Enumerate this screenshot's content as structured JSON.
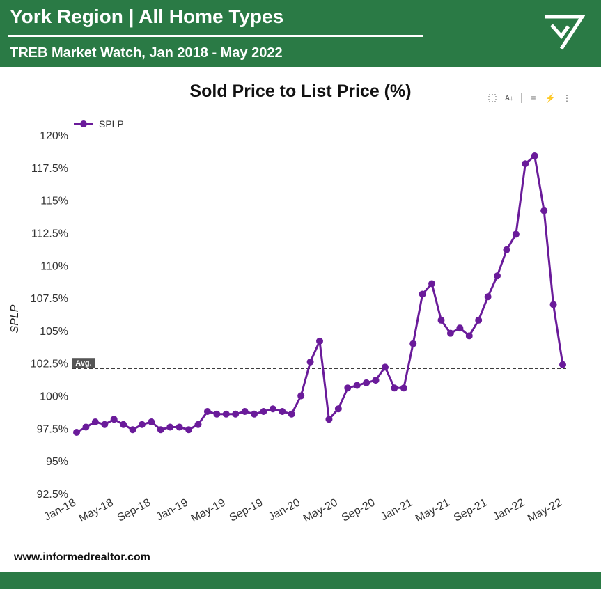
{
  "header": {
    "title": "York Region | All Home Types",
    "subtitle": "TREB Market Watch, Jan 2018 - May 2022",
    "logo_icon": "checkmark-triangle-logo"
  },
  "colors": {
    "brand": "#2a7a45",
    "series": "#6a1b9a",
    "avg_line": "#222222"
  },
  "toolbar": {
    "icons": [
      "select-region-icon",
      "sort-az-icon",
      "filter-icon",
      "quick-insights-icon",
      "more-options-icon"
    ]
  },
  "footer": {
    "url": "www.informedrealtor.com"
  },
  "chart_data": {
    "type": "line",
    "title": "Sold Price to List Price (%)",
    "xlabel": "",
    "ylabel": "SPLP",
    "ylim": [
      92.5,
      120
    ],
    "yticks": [
      "92.5%",
      "95%",
      "97.5%",
      "100%",
      "102.5%",
      "105%",
      "107.5%",
      "110%",
      "112.5%",
      "115%",
      "117.5%",
      "120%"
    ],
    "ytick_values": [
      92.5,
      95,
      97.5,
      100,
      102.5,
      105,
      107.5,
      110,
      112.5,
      115,
      117.5,
      120
    ],
    "xtick_labels": [
      "Jan-18",
      "May-18",
      "Sep-18",
      "Jan-19",
      "May-19",
      "Sep-19",
      "Jan-20",
      "May-20",
      "Sep-20",
      "Jan-21",
      "May-21",
      "Sep-21",
      "Jan-22",
      "May-22"
    ],
    "x": [
      "Jan-18",
      "Feb-18",
      "Mar-18",
      "Apr-18",
      "May-18",
      "Jun-18",
      "Jul-18",
      "Aug-18",
      "Sep-18",
      "Oct-18",
      "Nov-18",
      "Dec-18",
      "Jan-19",
      "Feb-19",
      "Mar-19",
      "Apr-19",
      "May-19",
      "Jun-19",
      "Jul-19",
      "Aug-19",
      "Sep-19",
      "Oct-19",
      "Nov-19",
      "Dec-19",
      "Jan-20",
      "Feb-20",
      "Mar-20",
      "Apr-20",
      "May-20",
      "Jun-20",
      "Jul-20",
      "Aug-20",
      "Sep-20",
      "Oct-20",
      "Nov-20",
      "Dec-20",
      "Jan-21",
      "Feb-21",
      "Mar-21",
      "Apr-21",
      "May-21",
      "Jun-21",
      "Jul-21",
      "Aug-21",
      "Sep-21",
      "Oct-21",
      "Nov-21",
      "Dec-21",
      "Jan-22",
      "Feb-22",
      "Mar-22",
      "Apr-22",
      "May-22"
    ],
    "series": [
      {
        "name": "SPLP",
        "values": [
          97.2,
          97.6,
          98.0,
          97.8,
          98.2,
          97.8,
          97.4,
          97.8,
          98.0,
          97.4,
          97.6,
          97.6,
          97.4,
          97.8,
          98.8,
          98.6,
          98.6,
          98.6,
          98.8,
          98.6,
          98.8,
          99.0,
          98.8,
          98.6,
          100.0,
          102.6,
          104.2,
          98.2,
          99.0,
          100.6,
          100.8,
          101.0,
          101.2,
          102.2,
          100.6,
          100.6,
          104.0,
          107.8,
          108.6,
          105.8,
          104.8,
          105.2,
          104.6,
          105.8,
          107.6,
          109.2,
          111.2,
          112.4,
          117.8,
          118.4,
          114.2,
          107.0,
          102.4
        ]
      }
    ],
    "average": 102.1,
    "average_label": "Avg.",
    "legend_position": "top-left",
    "grid": false
  }
}
